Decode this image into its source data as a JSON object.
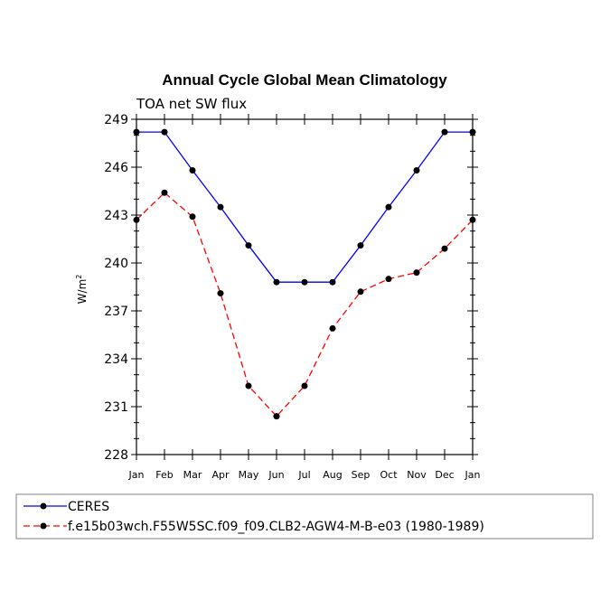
{
  "chart_data": {
    "type": "line",
    "title": "Annual Cycle Global Mean Climatology",
    "subtitle": "TOA net SW flux",
    "ylabel": "W/m",
    "ylabel_sup": "2",
    "xlabel": "",
    "categories": [
      "Jan",
      "Feb",
      "Mar",
      "Apr",
      "May",
      "Jun",
      "Jul",
      "Aug",
      "Sep",
      "Oct",
      "Nov",
      "Dec",
      "Jan"
    ],
    "ylim": [
      228,
      249
    ],
    "yticks": [
      228,
      231,
      234,
      237,
      240,
      243,
      246,
      249
    ],
    "ytick_labels": [
      "228",
      "231",
      "234",
      "237",
      "240",
      "243",
      "246",
      "249"
    ],
    "grid": false,
    "legend_position": "bottom",
    "series": [
      {
        "name": "CERES",
        "color": "#0000ff",
        "style": "solid",
        "values": [
          248.2,
          248.2,
          245.8,
          243.5,
          241.1,
          238.8,
          238.8,
          238.8,
          241.1,
          243.5,
          245.8,
          248.2,
          248.2
        ]
      },
      {
        "name": "f.e15b03wch.F55W5SC.f09_f09.CLB2-AGW4-M-B-e03 (1980-1989)",
        "color": "#ff0000",
        "style": "dashed",
        "values": [
          242.7,
          244.4,
          242.9,
          238.1,
          232.3,
          230.4,
          232.3,
          235.9,
          238.2,
          239.0,
          239.4,
          240.9,
          242.7
        ]
      }
    ]
  }
}
